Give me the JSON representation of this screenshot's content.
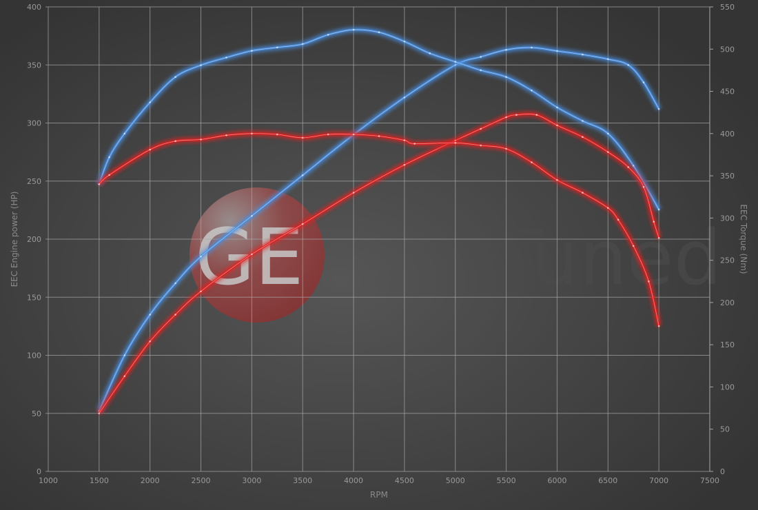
{
  "chart_data": {
    "type": "line",
    "title": "",
    "xlabel": "RPM",
    "ylabel": "EEC Engine power (HP)",
    "y2label": "EEC Torque (Nm)",
    "xlim": [
      1000,
      7500
    ],
    "ylim": [
      0,
      400
    ],
    "y2lim": [
      0,
      550
    ],
    "xticks": [
      "1000",
      "1500",
      "2000",
      "2500",
      "3000",
      "3500",
      "4000",
      "4500",
      "5000",
      "5500",
      "6000",
      "6500",
      "7000",
      "7500"
    ],
    "yticks": [
      "0",
      "50",
      "100",
      "150",
      "200",
      "250",
      "300",
      "350",
      "400"
    ],
    "y2ticks": [
      "0",
      "50",
      "100",
      "150",
      "200",
      "250",
      "300",
      "350",
      "400",
      "450",
      "500",
      "550"
    ],
    "grid": true,
    "watermark": "GETuned",
    "series": [
      {
        "axis": "left",
        "color": "#4a8fe0",
        "x": [
          1500,
          1750,
          2000,
          2250,
          2500,
          3000,
          3500,
          4000,
          4500,
          5000,
          5250,
          5500,
          5750,
          6000,
          6250,
          6500,
          6700,
          6850,
          7000
        ],
        "values": [
          52,
          100,
          135,
          162,
          185,
          220,
          255,
          290,
          322,
          350,
          357,
          363,
          365,
          362,
          359,
          355,
          350,
          335,
          312
        ]
      },
      {
        "axis": "right",
        "color": "#4a8fe0",
        "x": [
          1500,
          1600,
          1750,
          2000,
          2250,
          2500,
          2750,
          3000,
          3250,
          3500,
          3750,
          4000,
          4250,
          4500,
          4750,
          5000,
          5250,
          5500,
          5750,
          6000,
          6250,
          6500,
          6750,
          7000
        ],
        "values": [
          340,
          372,
          400,
          437,
          467,
          481,
          490,
          498,
          502,
          506,
          517,
          523,
          520,
          509,
          495,
          485,
          475,
          467,
          451,
          431,
          415,
          400,
          362,
          310
        ]
      },
      {
        "axis": "left",
        "color": "#e02020",
        "x": [
          1500,
          1750,
          2000,
          2250,
          2500,
          3000,
          3500,
          4000,
          4500,
          5000,
          5250,
          5500,
          5600,
          5800,
          6000,
          6250,
          6500,
          6700,
          6850,
          6950,
          7000
        ],
        "values": [
          50,
          82,
          112,
          135,
          155,
          187,
          213,
          240,
          264,
          285,
          295,
          305,
          307,
          307,
          298,
          288,
          275,
          262,
          245,
          215,
          201
        ]
      },
      {
        "axis": "right",
        "color": "#e02020",
        "x": [
          1500,
          1600,
          2000,
          2250,
          2500,
          2750,
          3000,
          3250,
          3500,
          3750,
          4000,
          4250,
          4500,
          4600,
          5000,
          5250,
          5500,
          5750,
          6000,
          6250,
          6500,
          6600,
          6750,
          6900,
          7000
        ],
        "values": [
          340,
          351,
          381,
          391,
          393,
          398,
          400,
          399,
          395,
          399,
          399,
          397,
          392,
          388,
          389,
          386,
          382,
          366,
          345,
          330,
          312,
          298,
          267,
          225,
          172
        ]
      }
    ]
  }
}
